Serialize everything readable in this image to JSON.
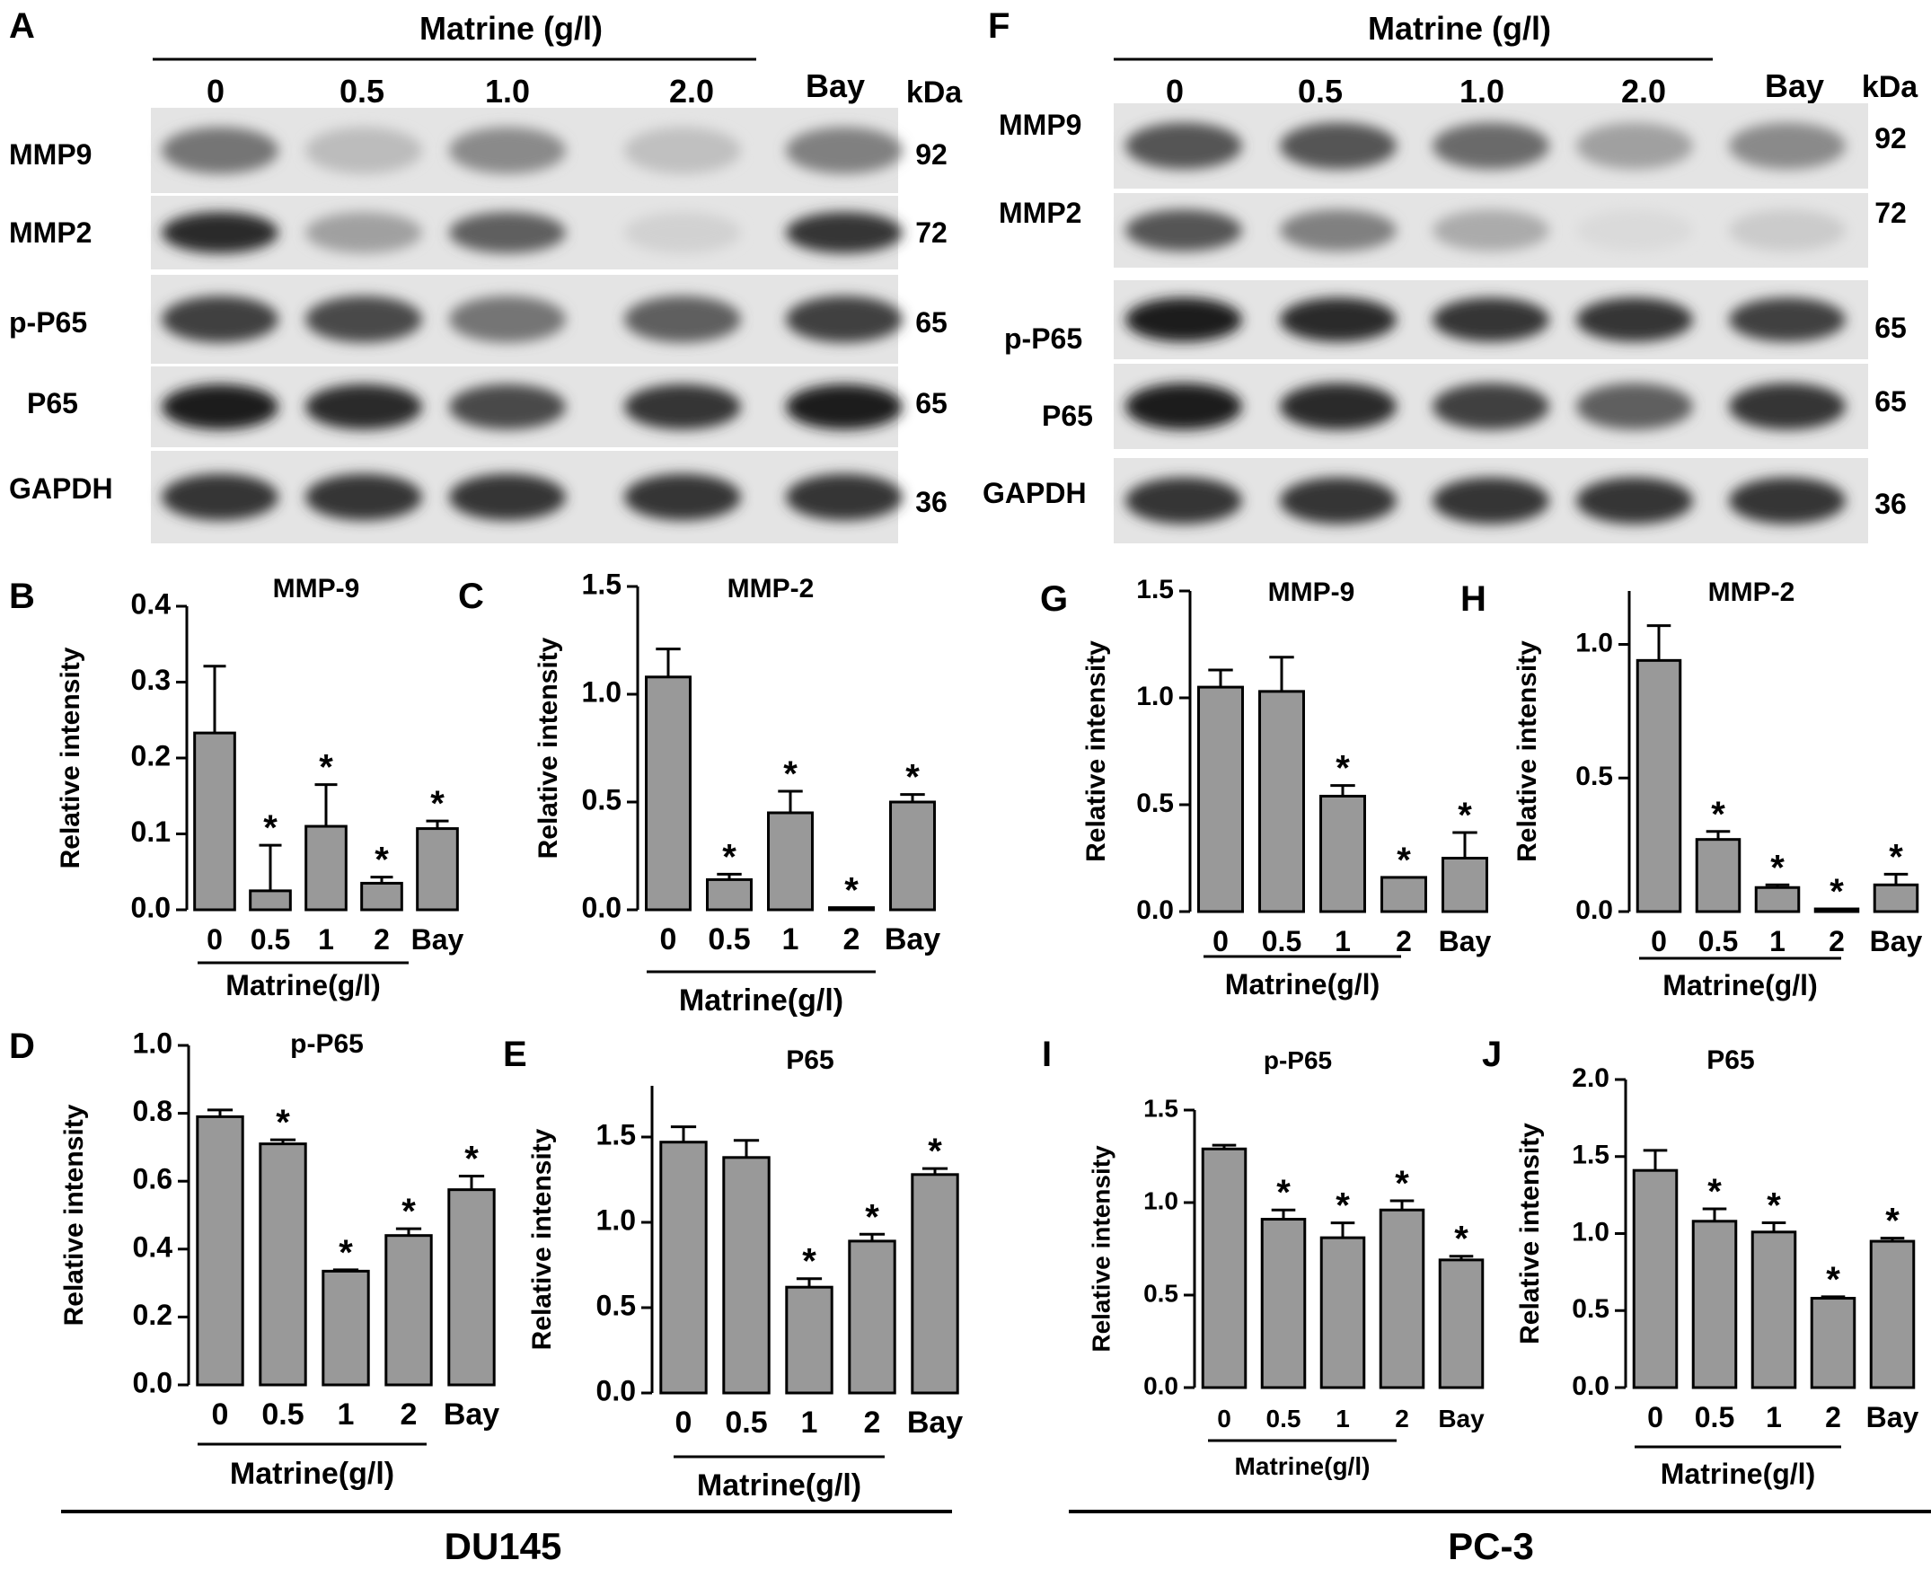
{
  "figure": {
    "blots": [
      {
        "panel_letter": "A",
        "treatment_header": "Matrine (g/l)",
        "lane_labels": [
          "0",
          "0.5",
          "1.0",
          "2.0",
          "Bay"
        ],
        "kda_header": "kDa",
        "rows": [
          {
            "protein": "MMP9",
            "kda": "92",
            "band_darkness": [
              0.55,
              0.22,
              0.45,
              0.2,
              0.5
            ]
          },
          {
            "protein": "MMP2",
            "kda": "72",
            "band_darkness": [
              0.9,
              0.35,
              0.65,
              0.12,
              0.85
            ]
          },
          {
            "protein": "p-P65",
            "kda": "65",
            "band_darkness": [
              0.8,
              0.75,
              0.55,
              0.65,
              0.8
            ]
          },
          {
            "protein": "P65",
            "kda": "65",
            "band_darkness": [
              0.95,
              0.9,
              0.75,
              0.85,
              0.95
            ]
          },
          {
            "protein": "GAPDH",
            "kda": "36",
            "band_darkness": [
              0.85,
              0.85,
              0.85,
              0.85,
              0.85
            ]
          }
        ]
      },
      {
        "panel_letter": "F",
        "treatment_header": "Matrine  (g/l)",
        "lane_labels": [
          "0",
          "0.5",
          "1.0",
          "2.0",
          "Bay"
        ],
        "kda_header": "kDa",
        "rows": [
          {
            "protein": "MMP9",
            "kda": "92",
            "band_darkness": [
              0.7,
              0.7,
              0.6,
              0.35,
              0.45
            ]
          },
          {
            "protein": "MMP2",
            "kda": "72",
            "band_darkness": [
              0.7,
              0.5,
              0.3,
              0.08,
              0.15
            ]
          },
          {
            "protein": "p-P65",
            "kda": "65",
            "band_darkness": [
              0.95,
              0.9,
              0.85,
              0.85,
              0.8
            ]
          },
          {
            "protein": "P65",
            "kda": "65",
            "band_darkness": [
              0.95,
              0.9,
              0.8,
              0.65,
              0.85
            ]
          },
          {
            "protein": "GAPDH",
            "kda": "36",
            "band_darkness": [
              0.85,
              0.85,
              0.85,
              0.85,
              0.85
            ]
          }
        ]
      }
    ],
    "cell_line_labels": [
      "DU145",
      "PC-3"
    ]
  },
  "chart_data": [
    {
      "panel": "B",
      "type": "bar",
      "title": "MMP-9",
      "ylabel": "Relative intensity",
      "xlabel": "Matrine(g/l)",
      "categories": [
        "0",
        "0.5",
        "1",
        "2",
        "Bay"
      ],
      "values": [
        0.233,
        0.025,
        0.11,
        0.035,
        0.107
      ],
      "errors": [
        0.088,
        0.06,
        0.055,
        0.008,
        0.01
      ],
      "significance": [
        "",
        "*",
        "*",
        "*",
        "*"
      ],
      "ylim": [
        0,
        0.4
      ],
      "yticks": [
        "0.0",
        "0.1",
        "0.2",
        "0.3",
        "0.4"
      ],
      "bar_color": "#999999"
    },
    {
      "panel": "C",
      "type": "bar",
      "title": "MMP-2",
      "ylabel": "Relative intensity",
      "xlabel": "Matrine(g/l)",
      "categories": [
        "0",
        "0.5",
        "1",
        "2",
        "Bay"
      ],
      "values": [
        1.08,
        0.14,
        0.45,
        0.01,
        0.5
      ],
      "errors": [
        0.13,
        0.025,
        0.1,
        0.0,
        0.035
      ],
      "significance": [
        "",
        "*",
        "*",
        "*",
        "*"
      ],
      "ylim": [
        0,
        1.5
      ],
      "yticks": [
        "0.0",
        "0.5",
        "1.0",
        "1.5"
      ],
      "bar_color": "#999999"
    },
    {
      "panel": "D",
      "type": "bar",
      "title": "p-P65",
      "ylabel": "Relative intensity",
      "xlabel": "Matrine(g/l)",
      "categories": [
        "0",
        "0.5",
        "1",
        "2",
        "Bay"
      ],
      "values": [
        0.79,
        0.71,
        0.335,
        0.44,
        0.575
      ],
      "errors": [
        0.02,
        0.012,
        0.004,
        0.02,
        0.04
      ],
      "significance": [
        "",
        "*",
        "*",
        "*",
        "*"
      ],
      "ylim": [
        0,
        1.0
      ],
      "yticks": [
        "0.0",
        "0.2",
        "0.4",
        "0.6",
        "0.8",
        "1.0"
      ],
      "bar_color": "#999999"
    },
    {
      "panel": "E",
      "type": "bar",
      "title": "P65",
      "ylabel": "Relative intensity",
      "xlabel": "Matrine(g/l)",
      "categories": [
        "0",
        "0.5",
        "1",
        "2",
        "Bay"
      ],
      "values": [
        1.47,
        1.38,
        0.62,
        0.89,
        1.28
      ],
      "errors": [
        0.09,
        0.1,
        0.05,
        0.04,
        0.035
      ],
      "significance": [
        "",
        "",
        "*",
        "*",
        "*"
      ],
      "ylim": [
        0,
        1.8
      ],
      "yticks": [
        "0.0",
        "0.5",
        "1.0",
        "1.5"
      ],
      "bar_color": "#999999"
    },
    {
      "panel": "G",
      "type": "bar",
      "title": "MMP-9",
      "ylabel": "Relative intensity",
      "xlabel": "Matrine(g/l)",
      "categories": [
        "0",
        "0.5",
        "1",
        "2",
        "Bay"
      ],
      "values": [
        1.05,
        1.03,
        0.54,
        0.16,
        0.25
      ],
      "errors": [
        0.08,
        0.16,
        0.05,
        0.0,
        0.12
      ],
      "significance": [
        "",
        "",
        "*",
        "*",
        "*"
      ],
      "ylim": [
        0,
        1.5
      ],
      "yticks": [
        "0.0",
        "0.5",
        "1.0",
        "1.5"
      ],
      "bar_color": "#999999"
    },
    {
      "panel": "H",
      "type": "bar",
      "title": "MMP-2",
      "ylabel": "Relative intensity",
      "xlabel": "Matrine(g/l)",
      "categories": [
        "0",
        "0.5",
        "1",
        "2",
        "Bay"
      ],
      "values": [
        0.94,
        0.27,
        0.09,
        0.01,
        0.1
      ],
      "errors": [
        0.13,
        0.03,
        0.01,
        0.0,
        0.04
      ],
      "significance": [
        "",
        "*",
        "*",
        "*",
        "*"
      ],
      "ylim": [
        0,
        1.2
      ],
      "yticks": [
        "0.0",
        "0.5",
        "1.0"
      ],
      "bar_color": "#999999"
    },
    {
      "panel": "I",
      "type": "bar",
      "title": "p-P65",
      "ylabel": "Relative intensity",
      "xlabel": "Matrine(g/l)",
      "categories": [
        "0",
        "0.5",
        "1",
        "2",
        "Bay"
      ],
      "values": [
        1.29,
        0.91,
        0.81,
        0.96,
        0.69
      ],
      "errors": [
        0.02,
        0.05,
        0.08,
        0.05,
        0.02
      ],
      "significance": [
        "",
        "*",
        "*",
        "*",
        "*"
      ],
      "ylim": [
        0,
        1.5
      ],
      "yticks": [
        "0.0",
        "0.5",
        "1.0",
        "1.5"
      ],
      "bar_color": "#999999"
    },
    {
      "panel": "J",
      "type": "bar",
      "title": "P65",
      "ylabel": "Relative intensity",
      "xlabel": "Matrine(g/l)",
      "categories": [
        "0",
        "0.5",
        "1",
        "2",
        "Bay"
      ],
      "values": [
        1.41,
        1.08,
        1.01,
        0.58,
        0.95
      ],
      "errors": [
        0.13,
        0.08,
        0.06,
        0.01,
        0.02
      ],
      "significance": [
        "",
        "*",
        "*",
        "*",
        "*"
      ],
      "ylim": [
        0,
        2.0
      ],
      "yticks": [
        "0.0",
        "0.5",
        "1.0",
        "1.5",
        "2.0"
      ],
      "bar_color": "#999999"
    }
  ]
}
